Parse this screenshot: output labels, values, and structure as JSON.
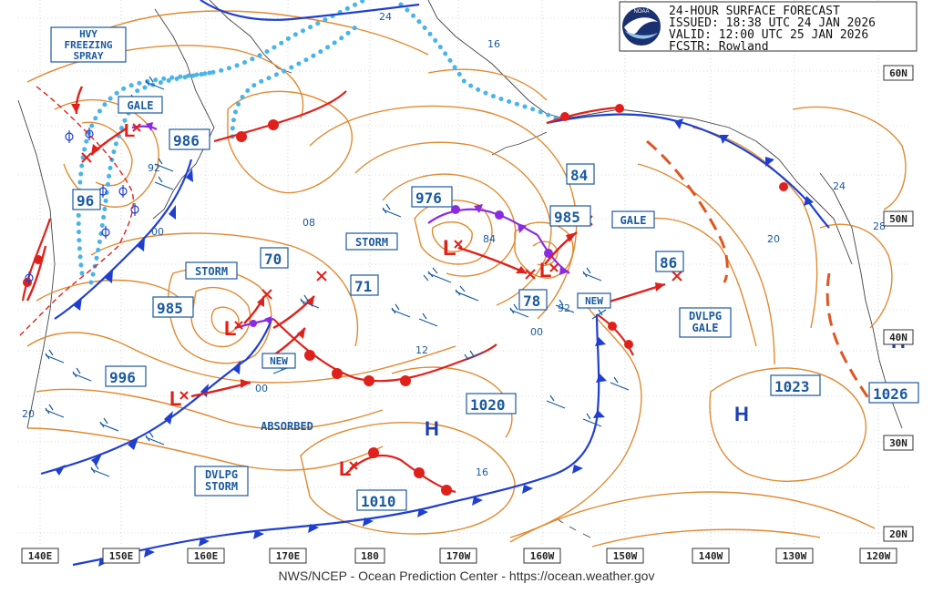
{
  "header": {
    "title": "24-HOUR SURFACE FORECAST",
    "issued": "ISSUED: 18:38 UTC 24 JAN 2026",
    "valid": "VALID:  12:00 UTC 25 JAN 2026",
    "forecaster": "FCSTR:  Rowland",
    "logo_text": "NOAA"
  },
  "footer": "NWS/NCEP - Ocean Prediction Center - https://ocean.weather.gov",
  "longitude_labels": [
    "140E",
    "150E",
    "160E",
    "170E",
    "180",
    "170W",
    "160W",
    "150W",
    "140W",
    "130W",
    "120W"
  ],
  "latitude_labels": [
    "60N",
    "50N",
    "40N",
    "30N",
    "20N"
  ],
  "warnings": {
    "hvy_freezing_spray": "HVY\nFREEZING\nSPRAY",
    "gale_nw": "GALE",
    "storm_center": "STORM",
    "storm_west": "STORM",
    "gale_east": "GALE",
    "dvlpg_gale": "DVLPG\nGALE",
    "dvlpg_storm": "DVLPG\nSTORM",
    "new_west": "NEW",
    "new_east": "NEW",
    "absorbed": "ABSORBED"
  },
  "pressure_labels": {
    "p986": "986",
    "p96": "96",
    "p976": "976",
    "p985_east": "985",
    "p84": "84",
    "p86": "86",
    "p70": "70",
    "p71": "71",
    "p985_west": "985",
    "p78": "78",
    "p996": "996",
    "p1020": "1020",
    "p1023": "1023",
    "p1026": "1026",
    "p1010": "1010"
  },
  "isobar_values": [
    "24",
    "16",
    "08",
    "00",
    "92",
    "84",
    "12",
    "20",
    "28",
    "24",
    "16",
    "00",
    "92",
    "00",
    "20"
  ],
  "centers": {
    "low": "L",
    "high": "H"
  },
  "colors": {
    "isobar": "#e08a30",
    "text_blue": "#1a5aa0",
    "cold_front": "#1f3fd0",
    "warm_front": "#e0201a",
    "occluded": "#8a2be2",
    "ice_edge": "#48b4e8",
    "forecast_track": "#e0201a"
  }
}
